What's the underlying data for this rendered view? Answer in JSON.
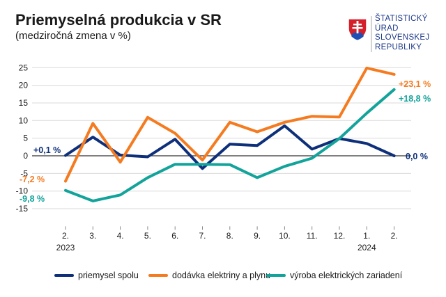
{
  "header": {
    "title": "Priemyselná produkcia v SR",
    "subtitle": "(medziročná zmena v %)"
  },
  "logo": {
    "icon": "slovak-coat-of-arms-icon",
    "lines": [
      "ŠTATISTICKÝ",
      "ÚRAD",
      "SLOVENSKEJ",
      "REPUBLIKY"
    ]
  },
  "colors": {
    "navy": "#0e2f7a",
    "orange": "#f47b20",
    "teal": "#12a39a",
    "grid": "#d9d9d9",
    "axis": "#333333"
  },
  "chart_data": {
    "type": "line",
    "title": "Priemyselná produkcia v SR",
    "subtitle": "(medziročná zmena v %)",
    "categories": [
      "2.",
      "3.",
      "4.",
      "5.",
      "6.",
      "7.",
      "8.",
      "9.",
      "10.",
      "11.",
      "12.",
      "1.",
      "2."
    ],
    "year_labels": [
      {
        "index": 0,
        "label": "2023"
      },
      {
        "index": 11,
        "label": "2024"
      }
    ],
    "ylim": [
      -20,
      25
    ],
    "yticks": [
      -15,
      -10,
      -5,
      0,
      5,
      10,
      15,
      20,
      25
    ],
    "grid": true,
    "legend_position": "bottom",
    "series": [
      {
        "name": "priemysel spolu",
        "color": "#0e2f7a",
        "values": [
          0.1,
          5.3,
          0.2,
          -0.3,
          4.7,
          -3.6,
          3.3,
          2.9,
          8.5,
          1.9,
          4.9,
          3.5,
          0.0
        ],
        "start_label": "+0,1 %",
        "end_label": "0,0 %"
      },
      {
        "name": "dodávka elektriny a plynu",
        "color": "#f47b20",
        "values": [
          -7.2,
          9.2,
          -1.8,
          10.9,
          6.4,
          -1.2,
          9.5,
          6.8,
          9.5,
          11.2,
          11.0,
          24.9,
          23.1
        ],
        "start_label": "-7,2 %",
        "end_label": "+23,1 %"
      },
      {
        "name": "výroba elektrických zariadení",
        "color": "#12a39a",
        "values": [
          -9.8,
          -12.8,
          -11.1,
          -6.2,
          -2.4,
          -2.4,
          -2.5,
          -6.2,
          -3.0,
          -0.7,
          4.9,
          12.1,
          18.8
        ],
        "start_label": "-9,8 %",
        "end_label": "+18,8 %"
      }
    ]
  }
}
